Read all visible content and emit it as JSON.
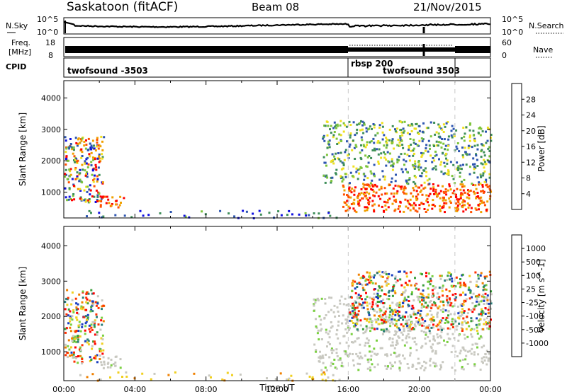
{
  "header": {
    "station": "Saskatoon (fitACF)",
    "beam": "Beam 08",
    "date": "21/Nov/2015"
  },
  "panels": {
    "nsky": {
      "label": "N.Sky",
      "left_top": "10^5",
      "left_bottom": "10^0",
      "right_top": "10^5",
      "right_bottom": "10^0",
      "right_label": "N.Search"
    },
    "freq": {
      "label_line1": "Freq.",
      "label_line2": "[MHz]",
      "left_top": "18",
      "left_bottom": "8",
      "right_top": "60",
      "right_bottom": "0",
      "right_label": "Nave"
    },
    "cpid": {
      "label": "CPID",
      "segments": [
        "twofsound -3503",
        "rbsp 200",
        "twofsound 3503"
      ]
    }
  },
  "chart_data": [
    {
      "type": "heatmap",
      "name": "Power",
      "ylabel": "Slant Range [km]",
      "xlabel": "Time UT",
      "x_ticks": [
        "00:00",
        "04:00",
        "08:00",
        "12:00",
        "16:00",
        "20:00",
        "00:00"
      ],
      "x_range_hours": [
        0,
        24
      ],
      "y_ticks": [
        1000,
        2000,
        3000,
        4000
      ],
      "y_range": [
        180,
        4550
      ],
      "colorbar": {
        "label": "Power [dB]",
        "ticks": [
          "4",
          "8",
          "12",
          "16",
          "20",
          "24",
          "28"
        ],
        "colors": [
          "#1010e0",
          "#2d55b0",
          "#3f8f5a",
          "#7dc43c",
          "#f0e020",
          "#f0a000",
          "#ff5000",
          "#ff0000"
        ]
      },
      "regions": [
        {
          "t": [
            0.0,
            2.2
          ],
          "r": [
            700,
            2800
          ],
          "level": "mixed-high"
        },
        {
          "t": [
            2.0,
            3.4
          ],
          "r": [
            550,
            900
          ],
          "level": "high"
        },
        {
          "t": [
            15.6,
            24.0
          ],
          "r": [
            400,
            1300
          ],
          "level": "high"
        },
        {
          "t": [
            14.5,
            24.0
          ],
          "r": [
            1300,
            3300
          ],
          "level": "mixed"
        },
        {
          "t": [
            0.5,
            15.5
          ],
          "r": [
            180,
            450
          ],
          "level": "low"
        }
      ]
    },
    {
      "type": "heatmap",
      "name": "Velocity",
      "ylabel": "Slant Range [km]",
      "xlabel": "Time UT",
      "x_ticks": [
        "00:00",
        "04:00",
        "08:00",
        "12:00",
        "16:00",
        "20:00",
        "00:00"
      ],
      "x_range_hours": [
        0,
        24
      ],
      "y_ticks": [
        1000,
        2000,
        3000,
        4000
      ],
      "y_range": [
        180,
        4550
      ],
      "colorbar": {
        "label": "Velocity [m s^-1]",
        "ticks": [
          "1000",
          "500",
          "100",
          "25",
          "-25",
          "-100",
          "-500",
          "-1000"
        ],
        "colors": [
          "#1a3fc0",
          "#2a7f7a",
          "#3aa03a",
          "#7ad040",
          "#c8c8c0",
          "#f0d020",
          "#f08000",
          "#ff3000",
          "#ff0000"
        ]
      },
      "regions": [
        {
          "t": [
            0.0,
            2.2
          ],
          "r": [
            700,
            2800
          ],
          "level": "mixed"
        },
        {
          "t": [
            2.0,
            3.4
          ],
          "r": [
            550,
            900
          ],
          "level": "ground"
        },
        {
          "t": [
            14.0,
            24.0
          ],
          "r": [
            500,
            2600
          ],
          "level": "ground"
        },
        {
          "t": [
            16.0,
            24.0
          ],
          "r": [
            1600,
            3300
          ],
          "level": "mixed"
        },
        {
          "t": [
            0.5,
            15.5
          ],
          "r": [
            180,
            450
          ],
          "level": "low"
        }
      ]
    }
  ],
  "vlines_hours": [
    16.0,
    22.0
  ],
  "colors": {
    "grey_line": "#c8c8c8",
    "axis": "#000000",
    "ground": "#c8c8c0"
  }
}
